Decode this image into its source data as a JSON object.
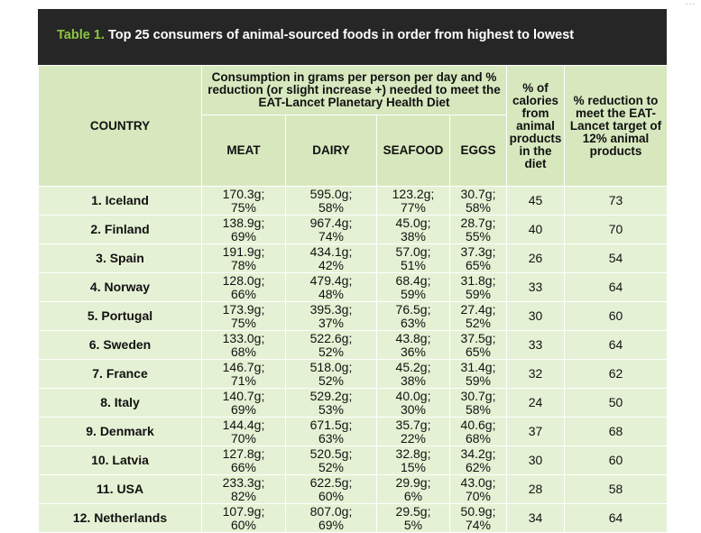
{
  "corner_mark": "…",
  "table": {
    "label": "Table 1.",
    "title": "Top 25 consumers of animal-sourced foods in order from highest to lowest",
    "headers": {
      "country": "COUNTRY",
      "group": "Consumption in grams per person per day and % reduction (or slight increase +) needed to meet the EAT-Lancet Planetary Health Diet",
      "meat": "MEAT",
      "dairy": "DAIRY",
      "seafood": "SEAFOOD",
      "eggs": "EGGS",
      "calories": "% of calories from animal products in the diet",
      "reduction": "% reduction to meet the EAT-Lancet target of 12% animal products"
    },
    "rows": [
      {
        "country": "1. Iceland",
        "meat_g": "170.3g;",
        "meat_pct": "75%",
        "dairy_g": "595.0g;",
        "dairy_pct": "58%",
        "seafood_g": "123.2g;",
        "seafood_pct": "77%",
        "eggs_g": "30.7g;",
        "eggs_pct": "58%",
        "calories": "45",
        "reduction": "73"
      },
      {
        "country": "2. Finland",
        "meat_g": "138.9g;",
        "meat_pct": "69%",
        "dairy_g": "967.4g;",
        "dairy_pct": "74%",
        "seafood_g": "45.0g;",
        "seafood_pct": "38%",
        "eggs_g": "28.7g;",
        "eggs_pct": "55%",
        "calories": "40",
        "reduction": "70"
      },
      {
        "country": "3. Spain",
        "meat_g": "191.9g;",
        "meat_pct": "78%",
        "dairy_g": "434.1g;",
        "dairy_pct": "42%",
        "seafood_g": "57.0g;",
        "seafood_pct": "51%",
        "eggs_g": "37.3g;",
        "eggs_pct": "65%",
        "calories": "26",
        "reduction": "54"
      },
      {
        "country": "4. Norway",
        "meat_g": "128.0g;",
        "meat_pct": "66%",
        "dairy_g": "479.4g;",
        "dairy_pct": "48%",
        "seafood_g": "68.4g;",
        "seafood_pct": "59%",
        "eggs_g": "31.8g;",
        "eggs_pct": "59%",
        "calories": "33",
        "reduction": "64"
      },
      {
        "country": "5. Portugal",
        "meat_g": "173.9g;",
        "meat_pct": "75%",
        "dairy_g": "395.3g;",
        "dairy_pct": "37%",
        "seafood_g": "76.5g;",
        "seafood_pct": "63%",
        "eggs_g": "27.4g;",
        "eggs_pct": "52%",
        "calories": "30",
        "reduction": "60"
      },
      {
        "country": "6. Sweden",
        "meat_g": "133.0g;",
        "meat_pct": "68%",
        "dairy_g": "522.6g;",
        "dairy_pct": "52%",
        "seafood_g": "43.8g;",
        "seafood_pct": "36%",
        "eggs_g": "37.5g;",
        "eggs_pct": "65%",
        "calories": "33",
        "reduction": "64"
      },
      {
        "country": "7. France",
        "meat_g": "146.7g;",
        "meat_pct": "71%",
        "dairy_g": "518.0g;",
        "dairy_pct": "52%",
        "seafood_g": "45.2g;",
        "seafood_pct": "38%",
        "eggs_g": "31.4g;",
        "eggs_pct": "59%",
        "calories": "32",
        "reduction": "62"
      },
      {
        "country": "8. Italy",
        "meat_g": "140.7g;",
        "meat_pct": "69%",
        "dairy_g": "529.2g;",
        "dairy_pct": "53%",
        "seafood_g": "40.0g;",
        "seafood_pct": "30%",
        "eggs_g": "30.7g;",
        "eggs_pct": "58%",
        "calories": "24",
        "reduction": "50"
      },
      {
        "country": "9. Denmark",
        "meat_g": "144.4g;",
        "meat_pct": "70%",
        "dairy_g": "671.5g;",
        "dairy_pct": "63%",
        "seafood_g": "35.7g;",
        "seafood_pct": "22%",
        "eggs_g": "40.6g;",
        "eggs_pct": "68%",
        "calories": "37",
        "reduction": "68"
      },
      {
        "country": "10. Latvia",
        "meat_g": "127.8g;",
        "meat_pct": "66%",
        "dairy_g": "520.5g;",
        "dairy_pct": "52%",
        "seafood_g": "32.8g;",
        "seafood_pct": "15%",
        "eggs_g": "34.2g;",
        "eggs_pct": "62%",
        "calories": "30",
        "reduction": "60"
      },
      {
        "country": "11. USA",
        "meat_g": "233.3g;",
        "meat_pct": "82%",
        "dairy_g": "622.5g;",
        "dairy_pct": "60%",
        "seafood_g": "29.9g;",
        "seafood_pct": "6%",
        "eggs_g": "43.0g;",
        "eggs_pct": "70%",
        "calories": "28",
        "reduction": "58"
      },
      {
        "country": "12. Netherlands",
        "meat_g": "107.9g;",
        "meat_pct": "60%",
        "dairy_g": "807.0g;",
        "dairy_pct": "69%",
        "seafood_g": "29.5g;",
        "seafood_pct": "5%",
        "eggs_g": "50.9g;",
        "eggs_pct": "74%",
        "calories": "34",
        "reduction": "64"
      }
    ]
  },
  "colors": {
    "title_bar": "#262626",
    "title_label": "#8cc63f",
    "header_fill": "#d7e8be",
    "row_fill": "#e5f1d4"
  }
}
